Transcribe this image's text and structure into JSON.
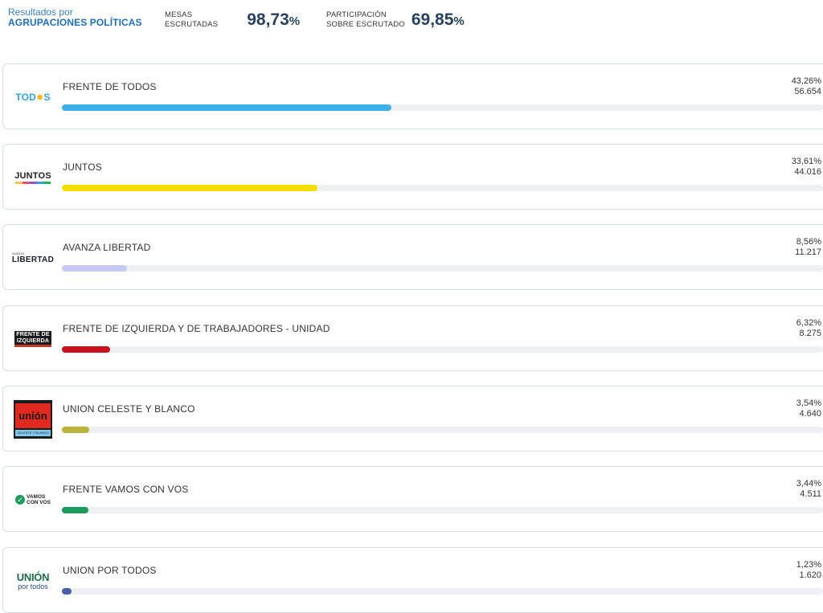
{
  "header": {
    "brand_line1": "Resultados por",
    "brand_line2": "AGRUPACIONES POLÍTICAS",
    "mesas_label_1": "MESAS",
    "mesas_label_2": "ESCRUTADAS",
    "mesas_value": "98,73",
    "mesas_pct": "%",
    "participacion_label_1": "PARTICIPACIÓN",
    "participacion_label_2": "SOBRE ESCRUTADO",
    "participacion_value": "69,85",
    "participacion_pct": "%"
  },
  "parties": [
    {
      "name": "FRENTE DE TODOS",
      "percent": "43,26%",
      "votes": "56.654",
      "share": 43.26,
      "bar_color": "#3cb0e6",
      "logo_icon": "frente-de-todos-logo",
      "logo": {
        "text": "TOD",
        "mark": "✹",
        "text2": "S"
      }
    },
    {
      "name": "JUNTOS",
      "percent": "33,61%",
      "votes": "44.016",
      "share": 33.61,
      "bar_color": "#f4df00",
      "logo_icon": "juntos-logo",
      "logo": {
        "text": "JUNTOS"
      }
    },
    {
      "name": "AVANZA LIBERTAD",
      "percent": "8,56%",
      "votes": "11.217",
      "share": 8.56,
      "bar_color": "#c9c9f5",
      "logo_icon": "avanza-libertad-logo",
      "logo": {
        "small": "AVANZA",
        "text": "LIBERTAD"
      }
    },
    {
      "name": "FRENTE DE IZQUIERDA Y DE TRABAJADORES - UNIDAD",
      "percent": "6,32%",
      "votes": "8.275",
      "share": 6.32,
      "bar_color": "#c8101e",
      "logo_icon": "frente-de-izquierda-logo",
      "logo": {
        "line1": "FRENTE DE",
        "line2": "IZQUIERDA"
      }
    },
    {
      "name": "UNION CELESTE Y BLANCO",
      "percent": "3,54%",
      "votes": "4.640",
      "share": 3.54,
      "bar_color": "#b8b43a",
      "logo_icon": "union-celeste-y-blanco-logo",
      "logo": {
        "text": "unión",
        "small": "CELESTE Y BLANCO"
      }
    },
    {
      "name": "FRENTE VAMOS CON VOS",
      "percent": "3,44%",
      "votes": "4.511",
      "share": 3.44,
      "bar_color": "#1a9a5c",
      "logo_icon": "frente-vamos-con-vos-logo",
      "logo": {
        "mark": "✓",
        "line1": "VAMOS",
        "line2": "CON VOS"
      }
    },
    {
      "name": "UNION POR TODOS",
      "percent": "1,23%",
      "votes": "1.620",
      "share": 1.23,
      "bar_color": "#4a5fa8",
      "logo_icon": "union-por-todos-logo",
      "logo": {
        "text": "UNIÓN",
        "small": "por todos"
      }
    }
  ]
}
